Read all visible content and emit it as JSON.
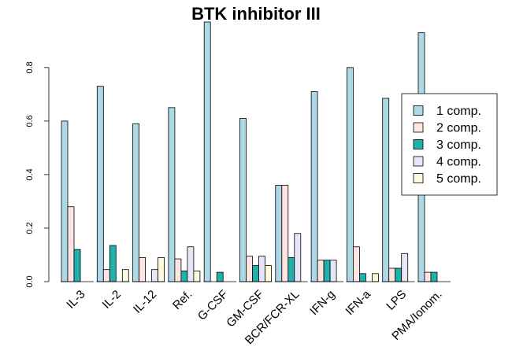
{
  "chart_data": {
    "type": "bar",
    "title": "BTK inhibitor III",
    "xlabel": "",
    "ylabel": "",
    "ylim": [
      0,
      0.97
    ],
    "yticks": [
      "0.0",
      "0.2",
      "0.4",
      "0.6",
      "0.8"
    ],
    "categories": [
      "IL-3",
      "IL-2",
      "IL-12",
      "Ref.",
      "G-CSF",
      "GM-CSF",
      "BCR/FCR-XL",
      "IFN-g",
      "IFN-a",
      "LPS",
      "PMA/Ionom."
    ],
    "series": [
      {
        "name": "1  comp.",
        "color": "#add8e6",
        "values": [
          0.6,
          0.73,
          0.59,
          0.65,
          0.97,
          0.61,
          0.36,
          0.71,
          0.8,
          0.685,
          0.93
        ]
      },
      {
        "name": "2  comp.",
        "color": "#ffe4e1",
        "values": [
          0.28,
          0.045,
          0.09,
          0.085,
          0.0,
          0.095,
          0.36,
          0.08,
          0.13,
          0.05,
          0.035
        ]
      },
      {
        "name": "3  comp.",
        "color": "#20b2aa",
        "values": [
          0.12,
          0.135,
          0.0,
          0.04,
          0.035,
          0.06,
          0.09,
          0.08,
          0.03,
          0.05,
          0.035
        ]
      },
      {
        "name": "4  comp.",
        "color": "#e6e6fa",
        "values": [
          0.0,
          0.0,
          0.045,
          0.13,
          0.0,
          0.095,
          0.18,
          0.08,
          0.0,
          0.105,
          0.0
        ]
      },
      {
        "name": "5  comp.",
        "color": "#fff8dc",
        "values": [
          0.0,
          0.045,
          0.09,
          0.04,
          0.0,
          0.06,
          0.0,
          0.0,
          0.03,
          0.0,
          0.0
        ]
      }
    ],
    "legend": "right"
  }
}
